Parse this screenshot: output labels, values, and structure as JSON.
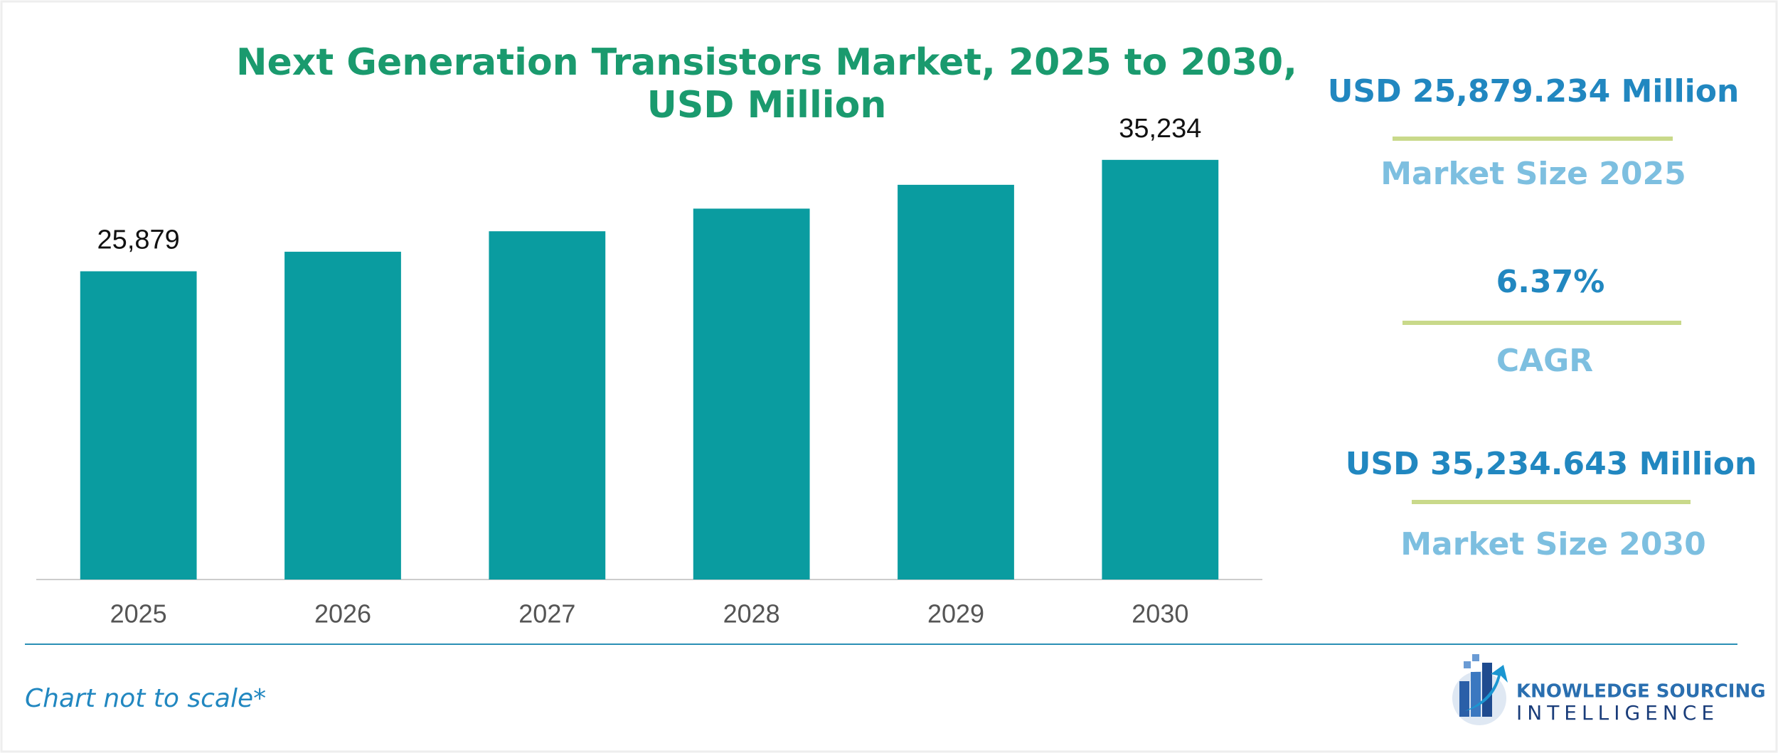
{
  "chart_data": {
    "type": "bar",
    "title": "Next Generation Transistors Market, 2025 to 2030,",
    "subtitle": "USD Million",
    "categories": [
      "2025",
      "2026",
      "2027",
      "2028",
      "2029",
      "2030"
    ],
    "values": [
      25879,
      27520,
      29240,
      31140,
      33140,
      35234
    ],
    "value_labels": [
      "25,879",
      null,
      null,
      null,
      null,
      "35,234"
    ],
    "color": "#0a9ca0",
    "ylim": [
      0,
      36000
    ]
  },
  "stats": [
    {
      "value": "USD 25,879.234 Million",
      "label": "Market Size 2025"
    },
    {
      "value": "6.37%",
      "label": "CAGR"
    },
    {
      "value": "USD 35,234.643 Million",
      "label": "Market Size 2030"
    }
  ],
  "footnote": "Chart not to scale*",
  "logo": {
    "line1": "KNOWLEDGE SOURCING",
    "line2": "INTELLIGENCE"
  }
}
